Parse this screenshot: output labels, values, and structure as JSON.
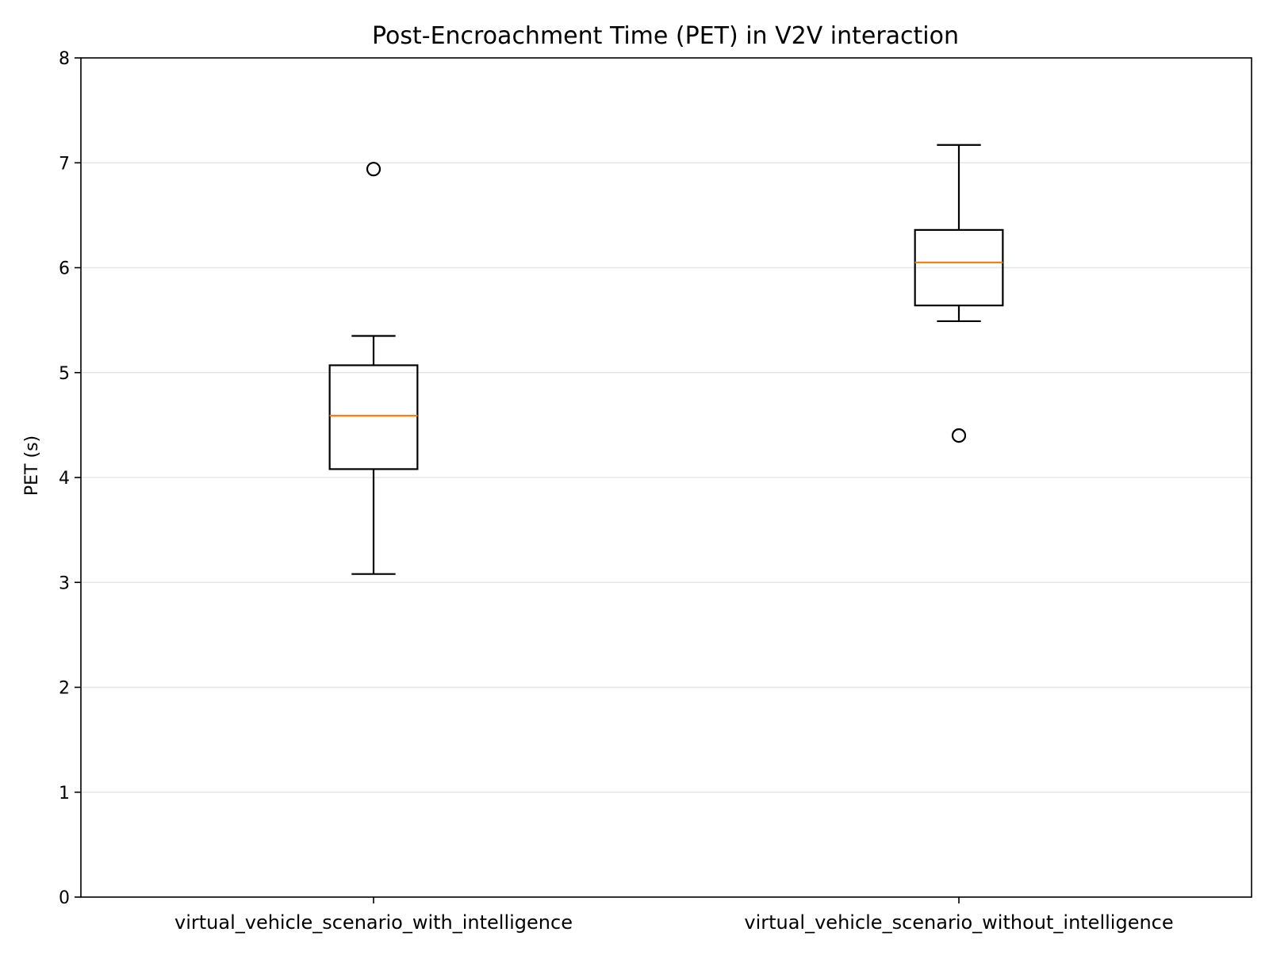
{
  "chart_data": {
    "type": "box",
    "title": "Post-Encroachment Time (PET) in V2V interaction",
    "xlabel": "",
    "ylabel": "PET (s)",
    "ylim": [
      0,
      8
    ],
    "yticks": [
      0,
      1,
      2,
      3,
      4,
      5,
      6,
      7,
      8
    ],
    "grid": "horizontal",
    "categories": [
      "virtual_vehicle_scenario_with_intelligence",
      "virtual_vehicle_scenario_without_intelligence"
    ],
    "boxes": [
      {
        "category": "virtual_vehicle_scenario_with_intelligence",
        "whisker_low": 3.08,
        "q1": 4.08,
        "median": 4.59,
        "q3": 5.07,
        "whisker_high": 5.35,
        "outliers": [
          6.94
        ]
      },
      {
        "category": "virtual_vehicle_scenario_without_intelligence",
        "whisker_low": 5.49,
        "q1": 5.64,
        "median": 6.05,
        "q3": 6.36,
        "whisker_high": 7.17,
        "outliers": [
          4.4
        ]
      }
    ],
    "colors": {
      "box": "#000000",
      "median": "#ff7f0e",
      "grid": "#e5e5e5"
    }
  }
}
